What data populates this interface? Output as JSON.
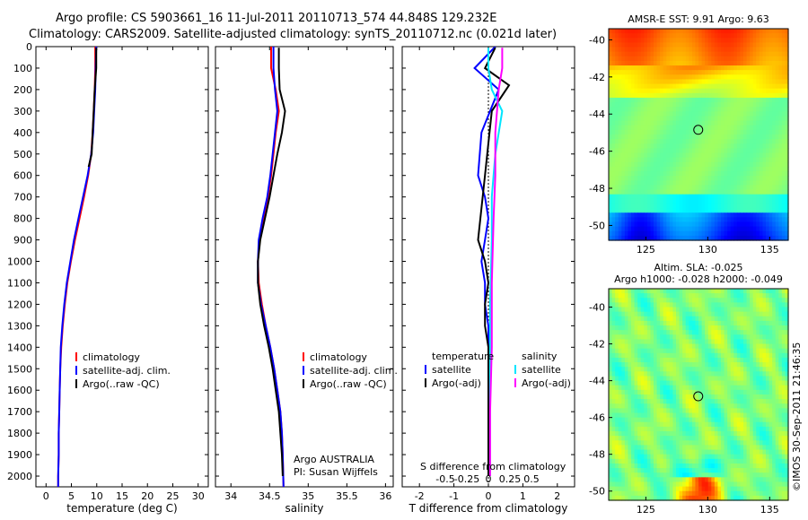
{
  "header": {
    "line1": "Argo profile: CS 5903661_16 11-Jul-2011 20110713_574 44.848S 129.232E",
    "line2": "Climatology: CARS2009. Satellite-adjusted climatology: synTS_20110712.nc (0.021d later)"
  },
  "watermark": "©IMOS 30-Sep-2011 21:46:35",
  "colors": {
    "climatology": "#ff0000",
    "satellite": "#0000ff",
    "argo": "#000000",
    "sat_salinity": "#00e5ff",
    "argo_salinity": "#ff00ff"
  },
  "chart_data": [
    {
      "type": "line",
      "id": "temperature",
      "xlabel": "temperature (deg C)",
      "xlim": [
        -2,
        32
      ],
      "ylim": [
        0,
        2050
      ],
      "xticks": [
        0,
        5,
        10,
        15,
        20,
        25,
        30
      ],
      "xtick_labels": [
        "0",
        "5",
        "10",
        "15",
        "20",
        "25",
        "30"
      ],
      "yticks": [
        0,
        100,
        200,
        300,
        400,
        500,
        600,
        700,
        800,
        900,
        1000,
        1100,
        1200,
        1300,
        1400,
        1500,
        1600,
        1700,
        1800,
        1900,
        2000
      ],
      "ytick_labels": [
        "0",
        "100",
        "200",
        "300",
        "400",
        "500",
        "600",
        "700",
        "800",
        "900",
        "1000",
        "1100",
        "1200",
        "1300",
        "1400",
        "1500",
        "1600",
        "1700",
        "1800",
        "1900",
        "2000"
      ],
      "legend": [
        "climatology",
        "satellite-adj. clim.",
        "Argo(..raw -QC)"
      ],
      "series": [
        {
          "name": "climatology",
          "color": "#ff0000",
          "x": [
            9.7,
            9.7,
            9.6,
            9.4,
            9.2,
            8.9,
            8.3,
            7.5,
            6.6,
            5.7,
            4.9,
            4.2,
            3.7,
            3.3,
            3.0,
            2.8,
            2.7,
            2.6,
            2.5,
            2.5,
            2.4,
            2.4
          ],
          "y": [
            0,
            100,
            200,
            300,
            400,
            500,
            600,
            700,
            800,
            900,
            1000,
            1100,
            1200,
            1300,
            1400,
            1500,
            1600,
            1700,
            1800,
            1900,
            2000,
            2050
          ]
        },
        {
          "name": "satellite-adj. clim.",
          "color": "#0000ff",
          "x": [
            9.9,
            9.8,
            9.7,
            9.5,
            9.3,
            8.9,
            8.2,
            7.3,
            6.4,
            5.5,
            4.8,
            4.1,
            3.6,
            3.2,
            2.9,
            2.8,
            2.7,
            2.6,
            2.5,
            2.5,
            2.4,
            2.4
          ],
          "y": [
            0,
            100,
            200,
            300,
            400,
            500,
            600,
            700,
            800,
            900,
            1000,
            1100,
            1200,
            1300,
            1400,
            1500,
            1600,
            1700,
            1800,
            1900,
            2000,
            2050
          ]
        },
        {
          "name": "Argo(..raw -QC)",
          "color": "#000000",
          "x": [
            9.9,
            9.9,
            9.6,
            9.4,
            9.2,
            9.0,
            8.4
          ],
          "y": [
            5,
            100,
            200,
            300,
            400,
            500,
            560
          ]
        }
      ],
      "annotation_lines": []
    },
    {
      "type": "line",
      "id": "salinity",
      "xlabel": "salinity",
      "xlim": [
        33.8,
        36.1
      ],
      "ylim": [
        0,
        2050
      ],
      "xticks": [
        34,
        34.5,
        35,
        35.5,
        36
      ],
      "xtick_labels": [
        "34",
        "34.5",
        "35",
        "35.5",
        "36"
      ],
      "legend": [
        "climatology",
        "satellite-adj. clim.",
        "Argo(..raw -QC)"
      ],
      "annotation_lines": [
        "Argo AUSTRALIA",
        "PI: Susan Wijffels"
      ],
      "series": [
        {
          "name": "climatology",
          "color": "#ff0000",
          "x": [
            34.52,
            34.52,
            34.58,
            34.62,
            34.58,
            34.55,
            34.52,
            34.48,
            34.42,
            34.37,
            34.35,
            34.36,
            34.4,
            34.45,
            34.51,
            34.56,
            34.6,
            34.64,
            34.66,
            34.67,
            34.68
          ],
          "y": [
            0,
            100,
            200,
            300,
            400,
            500,
            600,
            700,
            800,
            900,
            1000,
            1100,
            1200,
            1300,
            1400,
            1500,
            1600,
            1700,
            1800,
            1900,
            2050
          ]
        },
        {
          "name": "satellite-adj. clim.",
          "color": "#0000ff",
          "x": [
            34.55,
            34.55,
            34.57,
            34.6,
            34.57,
            34.54,
            34.51,
            34.47,
            34.41,
            34.36,
            34.35,
            34.35,
            34.39,
            34.45,
            34.51,
            34.56,
            34.6,
            34.64,
            34.66,
            34.67,
            34.68
          ],
          "y": [
            0,
            100,
            200,
            300,
            400,
            500,
            600,
            700,
            800,
            900,
            1000,
            1100,
            1200,
            1300,
            1400,
            1500,
            1600,
            1700,
            1800,
            1900,
            2050
          ]
        },
        {
          "name": "Argo(..raw -QC)",
          "color": "#000000",
          "x": [
            34.62,
            34.62,
            34.63,
            34.7,
            34.66,
            34.6,
            34.55,
            34.5,
            34.44,
            34.38,
            34.35,
            34.35,
            34.38,
            34.43,
            34.49,
            34.54,
            34.58,
            34.62,
            34.64,
            34.66,
            34.67
          ],
          "y": [
            5,
            100,
            200,
            300,
            400,
            500,
            600,
            700,
            800,
            900,
            1000,
            1100,
            1200,
            1300,
            1400,
            1500,
            1600,
            1700,
            1800,
            1900,
            2000
          ]
        }
      ]
    },
    {
      "type": "line",
      "id": "difference",
      "xlabel": "T difference from climatology",
      "xlabel2": "S difference from climatology",
      "xlim": [
        -2.5,
        2.5
      ],
      "ylim": [
        0,
        2050
      ],
      "xticks": [
        -2,
        -1,
        0,
        1,
        2
      ],
      "xtick_labels": [
        "-2",
        "-1",
        "0",
        "1",
        "2"
      ],
      "xticks2": [
        -1.25,
        -0.625,
        0,
        0.625,
        1.25
      ],
      "xtick_labels2": [
        "-0.5",
        "-0.25",
        "0",
        "0.25",
        "0.5"
      ],
      "legend_temperature_title": "temperature",
      "legend_salinity_title": "salinity",
      "legend_temperature": [
        "satellite",
        "Argo(-adj)"
      ],
      "legend_salinity": [
        "satellite",
        "Argo(-adj)"
      ],
      "series": [
        {
          "name": "T satellite",
          "color": "#0000ff",
          "x": [
            0.2,
            -0.4,
            0.3,
            -0.2,
            -0.3,
            -0.1,
            0.0,
            -0.1,
            -0.2,
            -0.1,
            -0.1,
            0.0,
            0.0,
            0.0,
            0.0,
            0.0,
            0.0,
            0.0,
            0.0
          ],
          "y": [
            0,
            100,
            200,
            400,
            600,
            700,
            800,
            900,
            1000,
            1100,
            1200,
            1300,
            1400,
            1500,
            1600,
            1700,
            1800,
            1900,
            2000
          ]
        },
        {
          "name": "T Argo(-adj)",
          "color": "#000000",
          "x": [
            0.2,
            -0.1,
            0.6,
            0.1,
            -0.1,
            -0.3,
            -0.1,
            0.0,
            -0.1,
            -0.1,
            0.0,
            0.0,
            0.0,
            0.0,
            0.0,
            0.0
          ],
          "y": [
            5,
            100,
            180,
            300,
            600,
            900,
            1000,
            1100,
            1200,
            1300,
            1400,
            1500,
            1600,
            1700,
            1800,
            2000
          ]
        },
        {
          "name": "S satellite",
          "color": "#00e5ff",
          "x": [
            0.0,
            0.0,
            0.1,
            0.4,
            0.2,
            0.1,
            0.1,
            0.05,
            0.05,
            0.05,
            0.05
          ],
          "y": [
            5,
            100,
            200,
            300,
            500,
            700,
            900,
            1200,
            1500,
            1800,
            2000
          ]
        },
        {
          "name": "S Argo(-adj)",
          "color": "#ff00ff",
          "x": [
            0.4,
            0.4,
            0.3,
            0.2,
            0.2,
            0.15,
            0.1,
            0.1,
            0.05,
            0.05
          ],
          "y": [
            5,
            100,
            200,
            400,
            600,
            800,
            1100,
            1400,
            1700,
            2000
          ]
        }
      ]
    },
    {
      "type": "heatmap",
      "id": "sst",
      "title": "AMSR-E SST: 9.91  Argo: 9.63",
      "xlim": [
        122,
        136.5
      ],
      "ylim": [
        -50.8,
        -39.4
      ],
      "xticks": [
        125,
        130,
        135
      ],
      "xtick_labels": [
        "125",
        "130",
        "135"
      ],
      "yticks": [
        -40,
        -42,
        -44,
        -46,
        -48,
        -50
      ],
      "ytick_labels": [
        "-40",
        "-42",
        "-44",
        "-46",
        "-48",
        "-50"
      ],
      "marker": {
        "lon": 129.232,
        "lat": -44.848
      }
    },
    {
      "type": "heatmap",
      "id": "sla",
      "title_line1": "Altim. SLA: -0.025",
      "title_line2": "Argo h1000: -0.028 h2000: -0.049",
      "xlim": [
        122,
        136.5
      ],
      "ylim": [
        -50.5,
        -39.0
      ],
      "xticks": [
        125,
        130,
        135
      ],
      "xtick_labels": [
        "125",
        "130",
        "135"
      ],
      "yticks": [
        -40,
        -42,
        -44,
        -46,
        -48,
        -50
      ],
      "ytick_labels": [
        "-40",
        "-42",
        "-44",
        "-46",
        "-48",
        "-50"
      ],
      "marker": {
        "lon": 129.232,
        "lat": -44.848
      }
    }
  ]
}
